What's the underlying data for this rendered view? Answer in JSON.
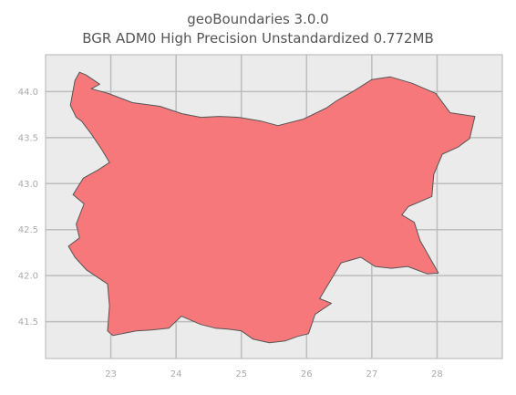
{
  "title": "geoBoundaries 3.0.0",
  "subtitle": "BGR ADM0 High Precision Unstandardized 0.772MB",
  "axes": {
    "x_ticks": [
      "23",
      "24",
      "25",
      "26",
      "27",
      "28"
    ],
    "y_ticks": [
      "44.0",
      "43.5",
      "43.0",
      "42.5",
      "42.0",
      "41.5"
    ],
    "xlim": [
      22.0,
      29.0
    ],
    "ylim": [
      41.1,
      44.4
    ],
    "grid": true
  },
  "map": {
    "country": "Bulgaria",
    "fill_color": "#f77577",
    "edge_color": "#555555",
    "background_color": "#ebebeb",
    "grid_color": "#bdbdbd"
  },
  "chart_data": {
    "type": "map",
    "x_ticks": [
      23,
      24,
      25,
      26,
      27,
      28
    ],
    "y_ticks": [
      44.0,
      43.5,
      43.0,
      42.5,
      42.0,
      41.5
    ],
    "xlim": [
      22.0,
      29.0
    ],
    "ylim": [
      41.1,
      44.4
    ],
    "grid": true,
    "boundary_lonlat": [
      [
        22.45,
        44.12
      ],
      [
        22.52,
        44.21
      ],
      [
        22.62,
        44.18
      ],
      [
        22.83,
        44.08
      ],
      [
        22.7,
        44.03
      ],
      [
        22.96,
        43.98
      ],
      [
        23.33,
        43.88
      ],
      [
        23.75,
        43.84
      ],
      [
        24.09,
        43.76
      ],
      [
        24.38,
        43.72
      ],
      [
        24.66,
        43.73
      ],
      [
        24.96,
        43.72
      ],
      [
        25.3,
        43.68
      ],
      [
        25.56,
        43.63
      ],
      [
        25.95,
        43.7
      ],
      [
        26.3,
        43.82
      ],
      [
        26.46,
        43.9
      ],
      [
        26.73,
        44.01
      ],
      [
        27.0,
        44.13
      ],
      [
        27.28,
        44.16
      ],
      [
        27.62,
        44.09
      ],
      [
        27.98,
        43.98
      ],
      [
        28.2,
        43.77
      ],
      [
        28.58,
        43.73
      ],
      [
        28.5,
        43.49
      ],
      [
        28.33,
        43.4
      ],
      [
        28.08,
        43.32
      ],
      [
        27.95,
        43.1
      ],
      [
        27.92,
        42.86
      ],
      [
        27.56,
        42.75
      ],
      [
        27.46,
        42.66
      ],
      [
        27.65,
        42.58
      ],
      [
        27.74,
        42.38
      ],
      [
        28.02,
        42.03
      ],
      [
        27.85,
        42.02
      ],
      [
        27.55,
        42.1
      ],
      [
        27.3,
        42.08
      ],
      [
        27.05,
        42.1
      ],
      [
        26.83,
        42.2
      ],
      [
        26.53,
        42.14
      ],
      [
        26.2,
        41.75
      ],
      [
        26.38,
        41.7
      ],
      [
        26.13,
        41.58
      ],
      [
        26.03,
        41.37
      ],
      [
        25.86,
        41.34
      ],
      [
        25.67,
        41.29
      ],
      [
        25.43,
        41.27
      ],
      [
        25.18,
        41.31
      ],
      [
        25.0,
        41.4
      ],
      [
        24.79,
        41.42
      ],
      [
        24.6,
        41.43
      ],
      [
        24.38,
        41.47
      ],
      [
        24.08,
        41.56
      ],
      [
        23.89,
        41.43
      ],
      [
        23.62,
        41.41
      ],
      [
        23.39,
        41.4
      ],
      [
        23.03,
        41.35
      ],
      [
        22.95,
        41.4
      ],
      [
        22.98,
        41.67
      ],
      [
        22.95,
        41.91
      ],
      [
        22.63,
        42.06
      ],
      [
        22.45,
        42.2
      ],
      [
        22.35,
        42.32
      ],
      [
        22.52,
        42.41
      ],
      [
        22.47,
        42.56
      ],
      [
        22.59,
        42.78
      ],
      [
        22.42,
        42.88
      ],
      [
        22.58,
        43.06
      ],
      [
        22.81,
        43.15
      ],
      [
        22.98,
        43.23
      ],
      [
        22.86,
        43.37
      ],
      [
        22.7,
        43.54
      ],
      [
        22.55,
        43.68
      ],
      [
        22.47,
        43.72
      ],
      [
        22.38,
        43.85
      ],
      [
        22.45,
        44.12
      ]
    ]
  }
}
